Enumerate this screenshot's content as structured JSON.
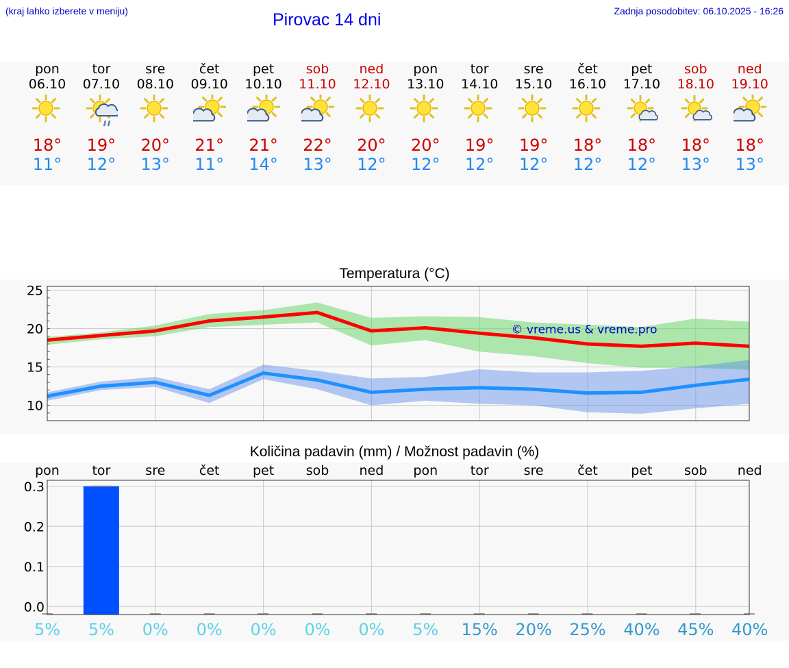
{
  "header": {
    "hint": "(kraj lahko izberete v meniju)",
    "title": "Pirovac 14 dni",
    "updated": "Zadnja posodobitev: 06.10.2025 - 16:26"
  },
  "colors": {
    "max": "#cc0000",
    "min": "#2288ee",
    "weekend": "#cc0000",
    "rain_bar": "#0050ff",
    "prob_low": "#5bd3e6",
    "prob_high": "#3399cc"
  },
  "days": [
    {
      "name": "pon",
      "date": "06.10",
      "weekend": false,
      "icon": "sun-icon",
      "max": "18°",
      "min": "11°"
    },
    {
      "name": "tor",
      "date": "07.10",
      "weekend": false,
      "icon": "sun-cloud-rain-icon",
      "max": "19°",
      "min": "12°"
    },
    {
      "name": "sre",
      "date": "08.10",
      "weekend": false,
      "icon": "sun-icon",
      "max": "20°",
      "min": "13°"
    },
    {
      "name": "čet",
      "date": "09.10",
      "weekend": false,
      "icon": "sun-cloud-icon",
      "max": "21°",
      "min": "11°"
    },
    {
      "name": "pet",
      "date": "10.10",
      "weekend": false,
      "icon": "sun-cloud-icon",
      "max": "21°",
      "min": "14°"
    },
    {
      "name": "sob",
      "date": "11.10",
      "weekend": true,
      "icon": "sun-cloud-icon",
      "max": "22°",
      "min": "13°"
    },
    {
      "name": "ned",
      "date": "12.10",
      "weekend": true,
      "icon": "sun-icon",
      "max": "20°",
      "min": "12°"
    },
    {
      "name": "pon",
      "date": "13.10",
      "weekend": false,
      "icon": "sun-icon",
      "max": "20°",
      "min": "12°"
    },
    {
      "name": "tor",
      "date": "14.10",
      "weekend": false,
      "icon": "sun-icon",
      "max": "19°",
      "min": "12°"
    },
    {
      "name": "sre",
      "date": "15.10",
      "weekend": false,
      "icon": "sun-icon",
      "max": "19°",
      "min": "12°"
    },
    {
      "name": "čet",
      "date": "16.10",
      "weekend": false,
      "icon": "sun-icon",
      "max": "18°",
      "min": "12°"
    },
    {
      "name": "pet",
      "date": "17.10",
      "weekend": false,
      "icon": "sun-small-cloud-icon",
      "max": "18°",
      "min": "12°"
    },
    {
      "name": "sob",
      "date": "18.10",
      "weekend": true,
      "icon": "sun-small-cloud-icon",
      "max": "18°",
      "min": "13°"
    },
    {
      "name": "ned",
      "date": "19.10",
      "weekend": true,
      "icon": "sun-cloud-icon",
      "max": "18°",
      "min": "13°"
    }
  ],
  "chart_data": [
    {
      "type": "line",
      "title": "Temperatura (°C)",
      "watermark": "© vreme.us & vreme.pro",
      "ylim": [
        8,
        25.5
      ],
      "yticks": [
        10,
        15,
        20,
        25
      ],
      "grid": true,
      "series": [
        {
          "values": [
            18.5,
            19.1,
            19.7,
            21.0,
            21.5,
            22.1,
            19.7,
            20.1,
            19.4,
            18.8,
            18.0,
            17.7,
            18.1,
            17.7
          ],
          "band_low": [
            17.9,
            18.6,
            19.0,
            20.2,
            20.5,
            20.8,
            17.8,
            18.5,
            17.0,
            16.4,
            15.5,
            14.9,
            14.9,
            14.6
          ],
          "band_high": [
            18.9,
            19.5,
            20.4,
            21.9,
            22.4,
            23.4,
            21.4,
            21.6,
            21.5,
            20.8,
            20.5,
            20.2,
            21.3,
            20.9
          ]
        },
        {
          "values": [
            11.2,
            12.5,
            13.0,
            11.3,
            14.2,
            13.3,
            11.7,
            12.1,
            12.3,
            12.1,
            11.6,
            11.7,
            12.6,
            13.4
          ],
          "band_low": [
            10.6,
            12.0,
            12.4,
            10.3,
            13.4,
            12.1,
            10.0,
            10.6,
            10.2,
            10.0,
            9.1,
            8.9,
            9.6,
            10.2
          ],
          "band_high": [
            11.7,
            13.1,
            13.7,
            12.1,
            15.3,
            14.5,
            13.5,
            13.7,
            14.7,
            14.3,
            14.3,
            14.5,
            15.1,
            15.9
          ]
        }
      ]
    },
    {
      "type": "bar",
      "title": "Količina padavin (mm) / Možnost padavin (%)",
      "categories": [
        "pon",
        "tor",
        "sre",
        "čet",
        "pet",
        "sob",
        "ned",
        "pon",
        "tor",
        "sre",
        "čet",
        "pet",
        "sob",
        "ned"
      ],
      "values": [
        0,
        0.3,
        0,
        0,
        0,
        0,
        0,
        0,
        0,
        0,
        0,
        0,
        0,
        0
      ],
      "probability": [
        "5%",
        "5%",
        "0%",
        "0%",
        "0%",
        "0%",
        "0%",
        "5%",
        "15%",
        "20%",
        "25%",
        "40%",
        "45%",
        "40%"
      ],
      "ylim": [
        -0.02,
        0.315
      ],
      "yticks": [
        "0.0",
        "0.1",
        "0.2",
        "0.3"
      ],
      "grid": true
    }
  ]
}
